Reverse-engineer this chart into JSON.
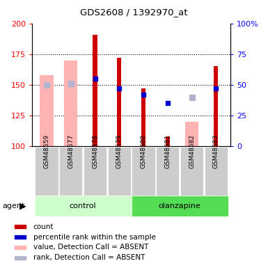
{
  "title": "GDS2608 / 1392970_at",
  "samples": [
    "GSM48559",
    "GSM48577",
    "GSM48578",
    "GSM48579",
    "GSM48580",
    "GSM48581",
    "GSM48582",
    "GSM48583"
  ],
  "ylim": [
    100,
    200
  ],
  "y2lim": [
    0,
    100
  ],
  "yticks": [
    100,
    125,
    150,
    175,
    200
  ],
  "y2ticks": [
    0,
    25,
    50,
    75,
    100
  ],
  "count_color": "#cc0000",
  "rank_color": "#0000cc",
  "absent_value_color": "#ffb3b3",
  "absent_rank_color": "#b3b3d0",
  "control_bg_light": "#ccffcc",
  "control_bg_dark": "#55dd55",
  "olanzapine_bg_light": "#ccffcc",
  "olanzapine_bg_dark": "#55dd55",
  "xticklabel_bg": "#cccccc",
  "count_values": [
    null,
    null,
    191,
    172,
    147,
    108,
    null,
    165
  ],
  "absent_value_values": [
    158,
    170,
    null,
    null,
    null,
    null,
    120,
    null
  ],
  "rank_values": [
    null,
    null,
    155,
    147,
    142,
    135,
    null,
    147
  ],
  "absent_rank_values": [
    150,
    151,
    null,
    null,
    null,
    null,
    140,
    null
  ],
  "legend_items": [
    {
      "color": "#cc0000",
      "label": "count"
    },
    {
      "color": "#0000cc",
      "label": "percentile rank within the sample"
    },
    {
      "color": "#ffb3b3",
      "label": "value, Detection Call = ABSENT"
    },
    {
      "color": "#b3b3d0",
      "label": "rank, Detection Call = ABSENT"
    }
  ]
}
